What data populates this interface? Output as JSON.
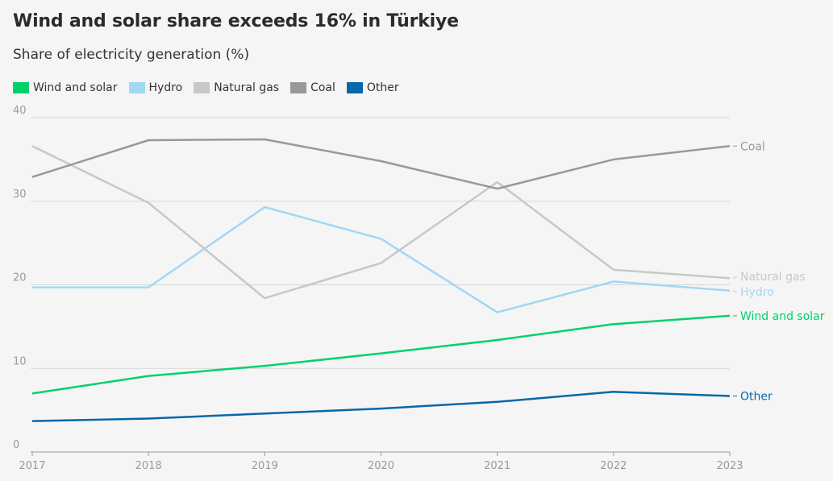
{
  "title": "Wind and solar share exceeds 16% in Türkiye",
  "subtitle": "Share of electricity generation (%)",
  "chart_data": {
    "type": "line",
    "x": [
      2017,
      2018,
      2019,
      2020,
      2021,
      2022,
      2023
    ],
    "ylim": [
      0,
      40
    ],
    "yticks": [
      0,
      10,
      20,
      30,
      40
    ],
    "grid": true,
    "legend_position": "top-left",
    "series": [
      {
        "name": "Wind and solar",
        "color": "#00d26a",
        "values": [
          7.0,
          9.1,
          10.3,
          11.8,
          13.4,
          15.3,
          16.3
        ]
      },
      {
        "name": "Hydro",
        "color": "#a0d8f5",
        "values": [
          19.7,
          19.7,
          29.3,
          25.5,
          16.7,
          20.4,
          19.3
        ]
      },
      {
        "name": "Natural gas",
        "color": "#c8c8c8",
        "values": [
          36.6,
          29.8,
          18.4,
          22.6,
          32.3,
          21.8,
          20.8
        ]
      },
      {
        "name": "Coal",
        "color": "#999999",
        "values": [
          32.9,
          37.3,
          37.4,
          34.8,
          31.5,
          35.0,
          36.6
        ]
      },
      {
        "name": "Other",
        "color": "#0767a8",
        "values": [
          3.7,
          4.0,
          4.6,
          5.2,
          6.0,
          7.2,
          6.7
        ]
      }
    ],
    "end_labels": [
      {
        "series": "Coal",
        "text": "Coal"
      },
      {
        "series": "Natural gas",
        "text": "Natural gas"
      },
      {
        "series": "Hydro",
        "text": "Hydro"
      },
      {
        "series": "Wind and solar",
        "text": "Wind and solar"
      },
      {
        "series": "Other",
        "text": "Other"
      }
    ]
  }
}
